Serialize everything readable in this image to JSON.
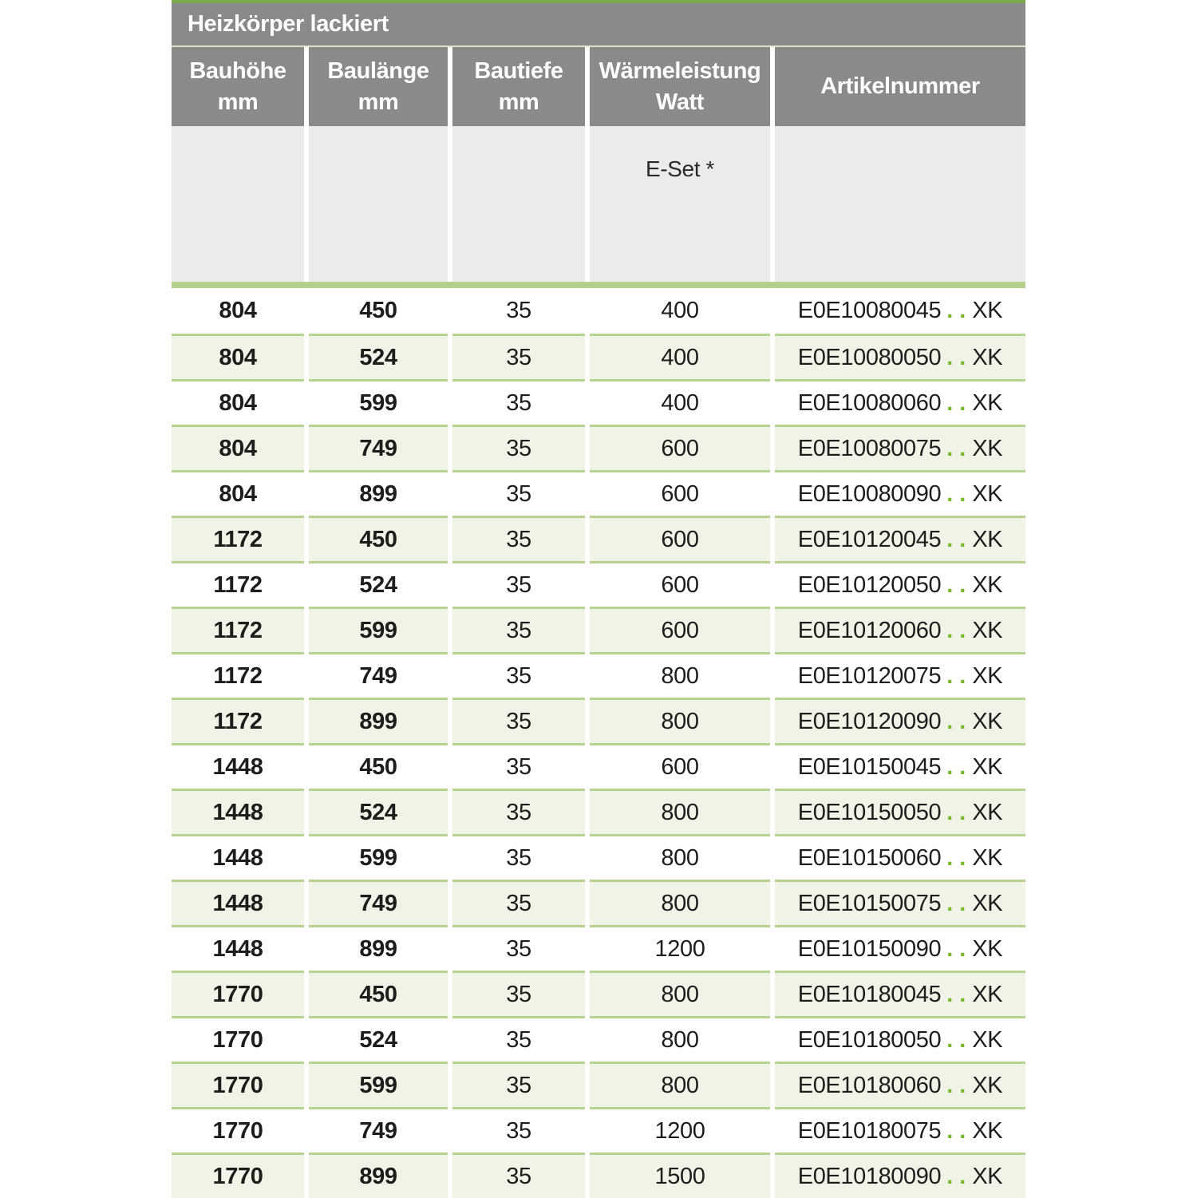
{
  "table": {
    "title": "Heizkörper lackiert",
    "columns": [
      {
        "label": "Bauhöhe",
        "unit": "mm"
      },
      {
        "label": "Baulänge",
        "unit": "mm"
      },
      {
        "label": "Bautiefe",
        "unit": "mm"
      },
      {
        "label": "Wärmeleistung",
        "unit": "Watt"
      },
      {
        "label": "Artikelnummer",
        "unit": ""
      }
    ],
    "sub_header": {
      "e_set_label": "E-Set *"
    },
    "colors": {
      "header_gray": "#8a8a8a",
      "sub_header_gray": "#ebebeb",
      "accent_green_band": "#b4d18c",
      "top_line_green": "#7ba94c",
      "row_alt_green": "#eff4e6",
      "dot_green": "#76b82a"
    },
    "rows": [
      {
        "bauhoehe_mm": "804",
        "baulaenge_mm": "450",
        "bautiefe_mm": "35",
        "waermeleistung_watt": "400",
        "artikelnummer": "E0E10080045",
        "artikelnummer_placeholder": "..",
        "artikelnummer_suffix": "XK"
      },
      {
        "bauhoehe_mm": "804",
        "baulaenge_mm": "524",
        "bautiefe_mm": "35",
        "waermeleistung_watt": "400",
        "artikelnummer": "E0E10080050",
        "artikelnummer_placeholder": "..",
        "artikelnummer_suffix": "XK"
      },
      {
        "bauhoehe_mm": "804",
        "baulaenge_mm": "599",
        "bautiefe_mm": "35",
        "waermeleistung_watt": "400",
        "artikelnummer": "E0E10080060",
        "artikelnummer_placeholder": "..",
        "artikelnummer_suffix": "XK"
      },
      {
        "bauhoehe_mm": "804",
        "baulaenge_mm": "749",
        "bautiefe_mm": "35",
        "waermeleistung_watt": "600",
        "artikelnummer": "E0E10080075",
        "artikelnummer_placeholder": "..",
        "artikelnummer_suffix": "XK"
      },
      {
        "bauhoehe_mm": "804",
        "baulaenge_mm": "899",
        "bautiefe_mm": "35",
        "waermeleistung_watt": "600",
        "artikelnummer": "E0E10080090",
        "artikelnummer_placeholder": "..",
        "artikelnummer_suffix": "XK"
      },
      {
        "bauhoehe_mm": "1172",
        "baulaenge_mm": "450",
        "bautiefe_mm": "35",
        "waermeleistung_watt": "600",
        "artikelnummer": "E0E10120045",
        "artikelnummer_placeholder": "..",
        "artikelnummer_suffix": "XK"
      },
      {
        "bauhoehe_mm": "1172",
        "baulaenge_mm": "524",
        "bautiefe_mm": "35",
        "waermeleistung_watt": "600",
        "artikelnummer": "E0E10120050",
        "artikelnummer_placeholder": "..",
        "artikelnummer_suffix": "XK"
      },
      {
        "bauhoehe_mm": "1172",
        "baulaenge_mm": "599",
        "bautiefe_mm": "35",
        "waermeleistung_watt": "600",
        "artikelnummer": "E0E10120060",
        "artikelnummer_placeholder": "..",
        "artikelnummer_suffix": "XK"
      },
      {
        "bauhoehe_mm": "1172",
        "baulaenge_mm": "749",
        "bautiefe_mm": "35",
        "waermeleistung_watt": "800",
        "artikelnummer": "E0E10120075",
        "artikelnummer_placeholder": "..",
        "artikelnummer_suffix": "XK"
      },
      {
        "bauhoehe_mm": "1172",
        "baulaenge_mm": "899",
        "bautiefe_mm": "35",
        "waermeleistung_watt": "800",
        "artikelnummer": "E0E10120090",
        "artikelnummer_placeholder": "..",
        "artikelnummer_suffix": "XK"
      },
      {
        "bauhoehe_mm": "1448",
        "baulaenge_mm": "450",
        "bautiefe_mm": "35",
        "waermeleistung_watt": "600",
        "artikelnummer": "E0E10150045",
        "artikelnummer_placeholder": "..",
        "artikelnummer_suffix": "XK"
      },
      {
        "bauhoehe_mm": "1448",
        "baulaenge_mm": "524",
        "bautiefe_mm": "35",
        "waermeleistung_watt": "800",
        "artikelnummer": "E0E10150050",
        "artikelnummer_placeholder": "..",
        "artikelnummer_suffix": "XK"
      },
      {
        "bauhoehe_mm": "1448",
        "baulaenge_mm": "599",
        "bautiefe_mm": "35",
        "waermeleistung_watt": "800",
        "artikelnummer": "E0E10150060",
        "artikelnummer_placeholder": "..",
        "artikelnummer_suffix": "XK"
      },
      {
        "bauhoehe_mm": "1448",
        "baulaenge_mm": "749",
        "bautiefe_mm": "35",
        "waermeleistung_watt": "800",
        "artikelnummer": "E0E10150075",
        "artikelnummer_placeholder": "..",
        "artikelnummer_suffix": "XK"
      },
      {
        "bauhoehe_mm": "1448",
        "baulaenge_mm": "899",
        "bautiefe_mm": "35",
        "waermeleistung_watt": "1200",
        "artikelnummer": "E0E10150090",
        "artikelnummer_placeholder": "..",
        "artikelnummer_suffix": "XK"
      },
      {
        "bauhoehe_mm": "1770",
        "baulaenge_mm": "450",
        "bautiefe_mm": "35",
        "waermeleistung_watt": "800",
        "artikelnummer": "E0E10180045",
        "artikelnummer_placeholder": "..",
        "artikelnummer_suffix": "XK"
      },
      {
        "bauhoehe_mm": "1770",
        "baulaenge_mm": "524",
        "bautiefe_mm": "35",
        "waermeleistung_watt": "800",
        "artikelnummer": "E0E10180050",
        "artikelnummer_placeholder": "..",
        "artikelnummer_suffix": "XK"
      },
      {
        "bauhoehe_mm": "1770",
        "baulaenge_mm": "599",
        "bautiefe_mm": "35",
        "waermeleistung_watt": "800",
        "artikelnummer": "E0E10180060",
        "artikelnummer_placeholder": "..",
        "artikelnummer_suffix": "XK"
      },
      {
        "bauhoehe_mm": "1770",
        "baulaenge_mm": "749",
        "bautiefe_mm": "35",
        "waermeleistung_watt": "1200",
        "artikelnummer": "E0E10180075",
        "artikelnummer_placeholder": "..",
        "artikelnummer_suffix": "XK"
      },
      {
        "bauhoehe_mm": "1770",
        "baulaenge_mm": "899",
        "bautiefe_mm": "35",
        "waermeleistung_watt": "1500",
        "artikelnummer": "E0E10180090",
        "artikelnummer_placeholder": "..",
        "artikelnummer_suffix": "XK"
      }
    ]
  }
}
